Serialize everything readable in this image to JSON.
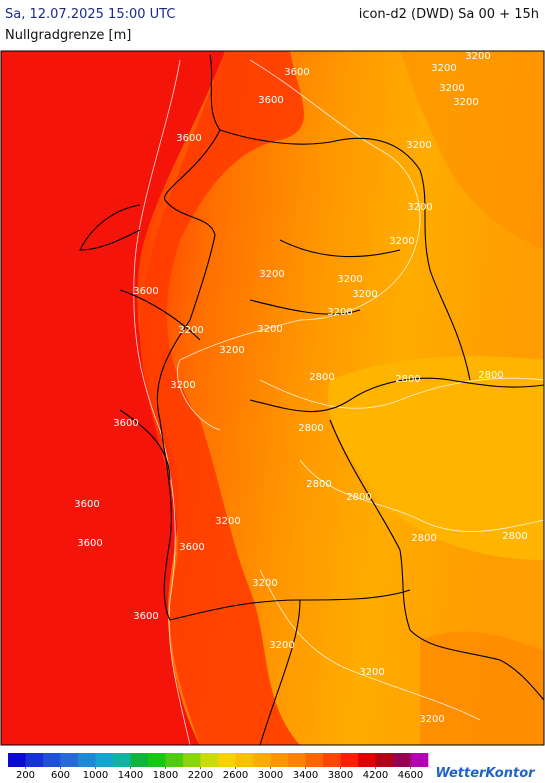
{
  "header": {
    "datetime": "Sa, 12.07.2025 15:00 UTC",
    "model": "icon-d2 (DWD) Sa 00 + 15h",
    "parameter": "Nullgradgrenze [m]"
  },
  "map": {
    "contour_labels": [
      "3600",
      "3600",
      "3200",
      "3200",
      "3200",
      "3200",
      "3200",
      "3200",
      "3200",
      "3200",
      "3600",
      "3200",
      "3200",
      "3200",
      "3200",
      "3200",
      "3200",
      "2800",
      "2800",
      "3600",
      "2800",
      "2800",
      "2800",
      "2800",
      "3600",
      "3600",
      "3200",
      "2800",
      "3600",
      "3200",
      "2800",
      "3600",
      "3200",
      "3600",
      "3200",
      "3200",
      "3200"
    ]
  },
  "legend": {
    "range": [
      0,
      4800
    ],
    "ticks": [
      200,
      600,
      1000,
      1400,
      1800,
      2200,
      2600,
      3000,
      3400,
      3800,
      4200,
      4600
    ],
    "colors": [
      "#0a0ad2",
      "#1432d6",
      "#1e50da",
      "#2a6ad8",
      "#1e88d6",
      "#14a4d0",
      "#10b4a0",
      "#10b43c",
      "#14c814",
      "#50cc10",
      "#8cd40a",
      "#c8dc0a",
      "#f5d200",
      "#fac000",
      "#ffac00",
      "#ff9600",
      "#ff8200",
      "#ff6400",
      "#ff4600",
      "#ff1e00",
      "#e00000",
      "#b40014",
      "#960050",
      "#b400b4"
    ]
  },
  "logo": "WetterKontor"
}
